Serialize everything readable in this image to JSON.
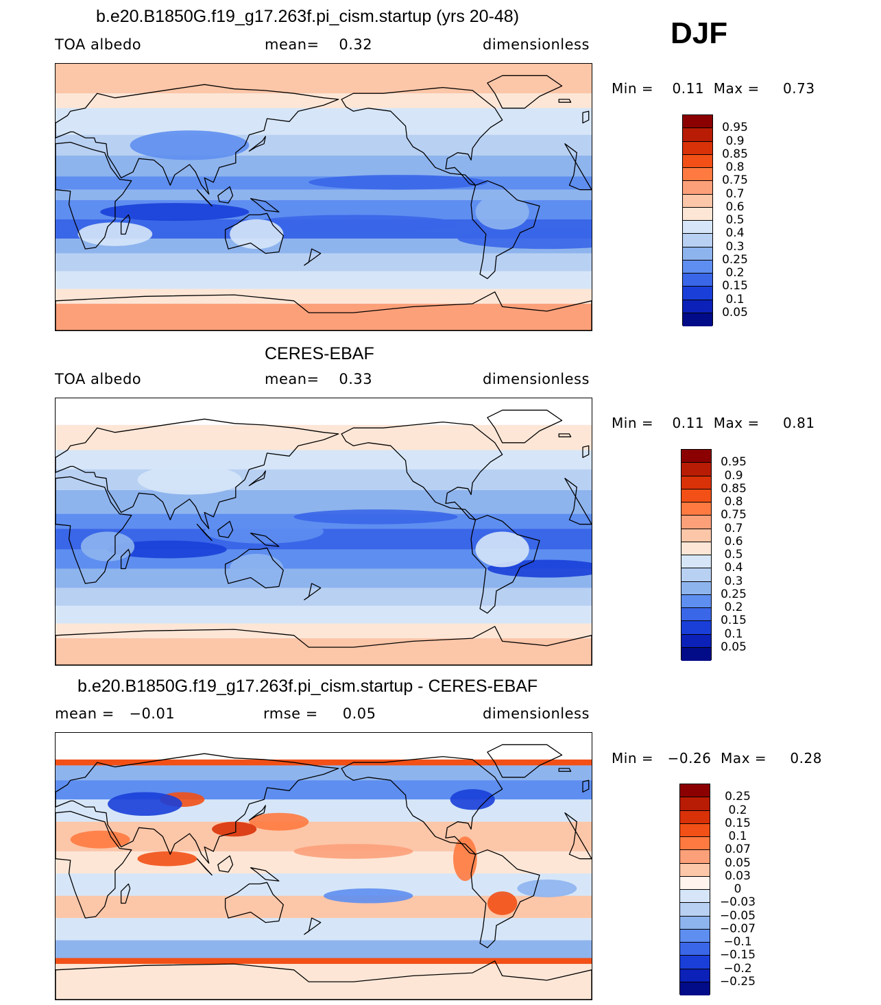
{
  "season": "DJF",
  "panels": [
    {
      "title": "b.e20.B1850G.f19_g17.263f.pi_cism.startup (yrs 20-48)",
      "left_label": "TOA albedo",
      "mid_label": "mean=    0.32",
      "right_label": "dimensionless",
      "minmax": "Min =    0.11  Max =     0.73",
      "colorbar_labels": [
        "0.95",
        "0.9",
        "0.85",
        "0.8",
        "0.75",
        "0.7",
        "0.6",
        "0.5",
        "0.4",
        "0.3",
        "0.25",
        "0.2",
        "0.15",
        "0.1",
        "0.05"
      ],
      "colorbar_colors": [
        "#8b0000",
        "#b81c04",
        "#d93208",
        "#f25016",
        "#ff7a40",
        "#fca07a",
        "#fcc6a8",
        "#fde6d6",
        "#d6e6f8",
        "#b8d0f2",
        "#8eb4ee",
        "#5e8ef0",
        "#3a66e8",
        "#1a3fd8",
        "#0b21b8",
        "#020b88"
      ],
      "map_type": "model"
    },
    {
      "title": "CERES-EBAF",
      "left_label": "TOA albedo",
      "mid_label": "mean=    0.33",
      "right_label": "dimensionless",
      "minmax": "Min =    0.11  Max =     0.81",
      "colorbar_labels": [
        "0.95",
        "0.9",
        "0.85",
        "0.8",
        "0.75",
        "0.7",
        "0.6",
        "0.5",
        "0.4",
        "0.3",
        "0.25",
        "0.2",
        "0.15",
        "0.1",
        "0.05"
      ],
      "colorbar_colors": [
        "#8b0000",
        "#b81c04",
        "#d93208",
        "#f25016",
        "#ff7a40",
        "#fca07a",
        "#fcc6a8",
        "#fde6d6",
        "#d6e6f8",
        "#b8d0f2",
        "#8eb4ee",
        "#5e8ef0",
        "#3a66e8",
        "#1a3fd8",
        "#0b21b8",
        "#020b88"
      ],
      "map_type": "obs"
    },
    {
      "title": "b.e20.B1850G.f19_g17.263f.pi_cism.startup - CERES-EBAF",
      "left_label": "mean =   −0.01",
      "mid_label": "rmse =     0.05",
      "right_label": "dimensionless",
      "minmax": "Min =   −0.26  Max =     0.28",
      "colorbar_labels": [
        "0.25",
        "0.2",
        "0.15",
        "0.1",
        "0.07",
        "0.05",
        "0.03",
        "0",
        "−0.03",
        "−0.05",
        "−0.07",
        "−0.1",
        "−0.15",
        "−0.2",
        "−0.25"
      ],
      "colorbar_colors": [
        "#8b0000",
        "#b81c04",
        "#d93208",
        "#f25016",
        "#ff7a40",
        "#fca07a",
        "#fcc6a8",
        "#fff4ee",
        "#d6e6f8",
        "#b8d0f2",
        "#8eb4ee",
        "#5e8ef0",
        "#3a66e8",
        "#1a3fd8",
        "#0b21b8",
        "#020b88"
      ],
      "map_type": "diff"
    }
  ]
}
